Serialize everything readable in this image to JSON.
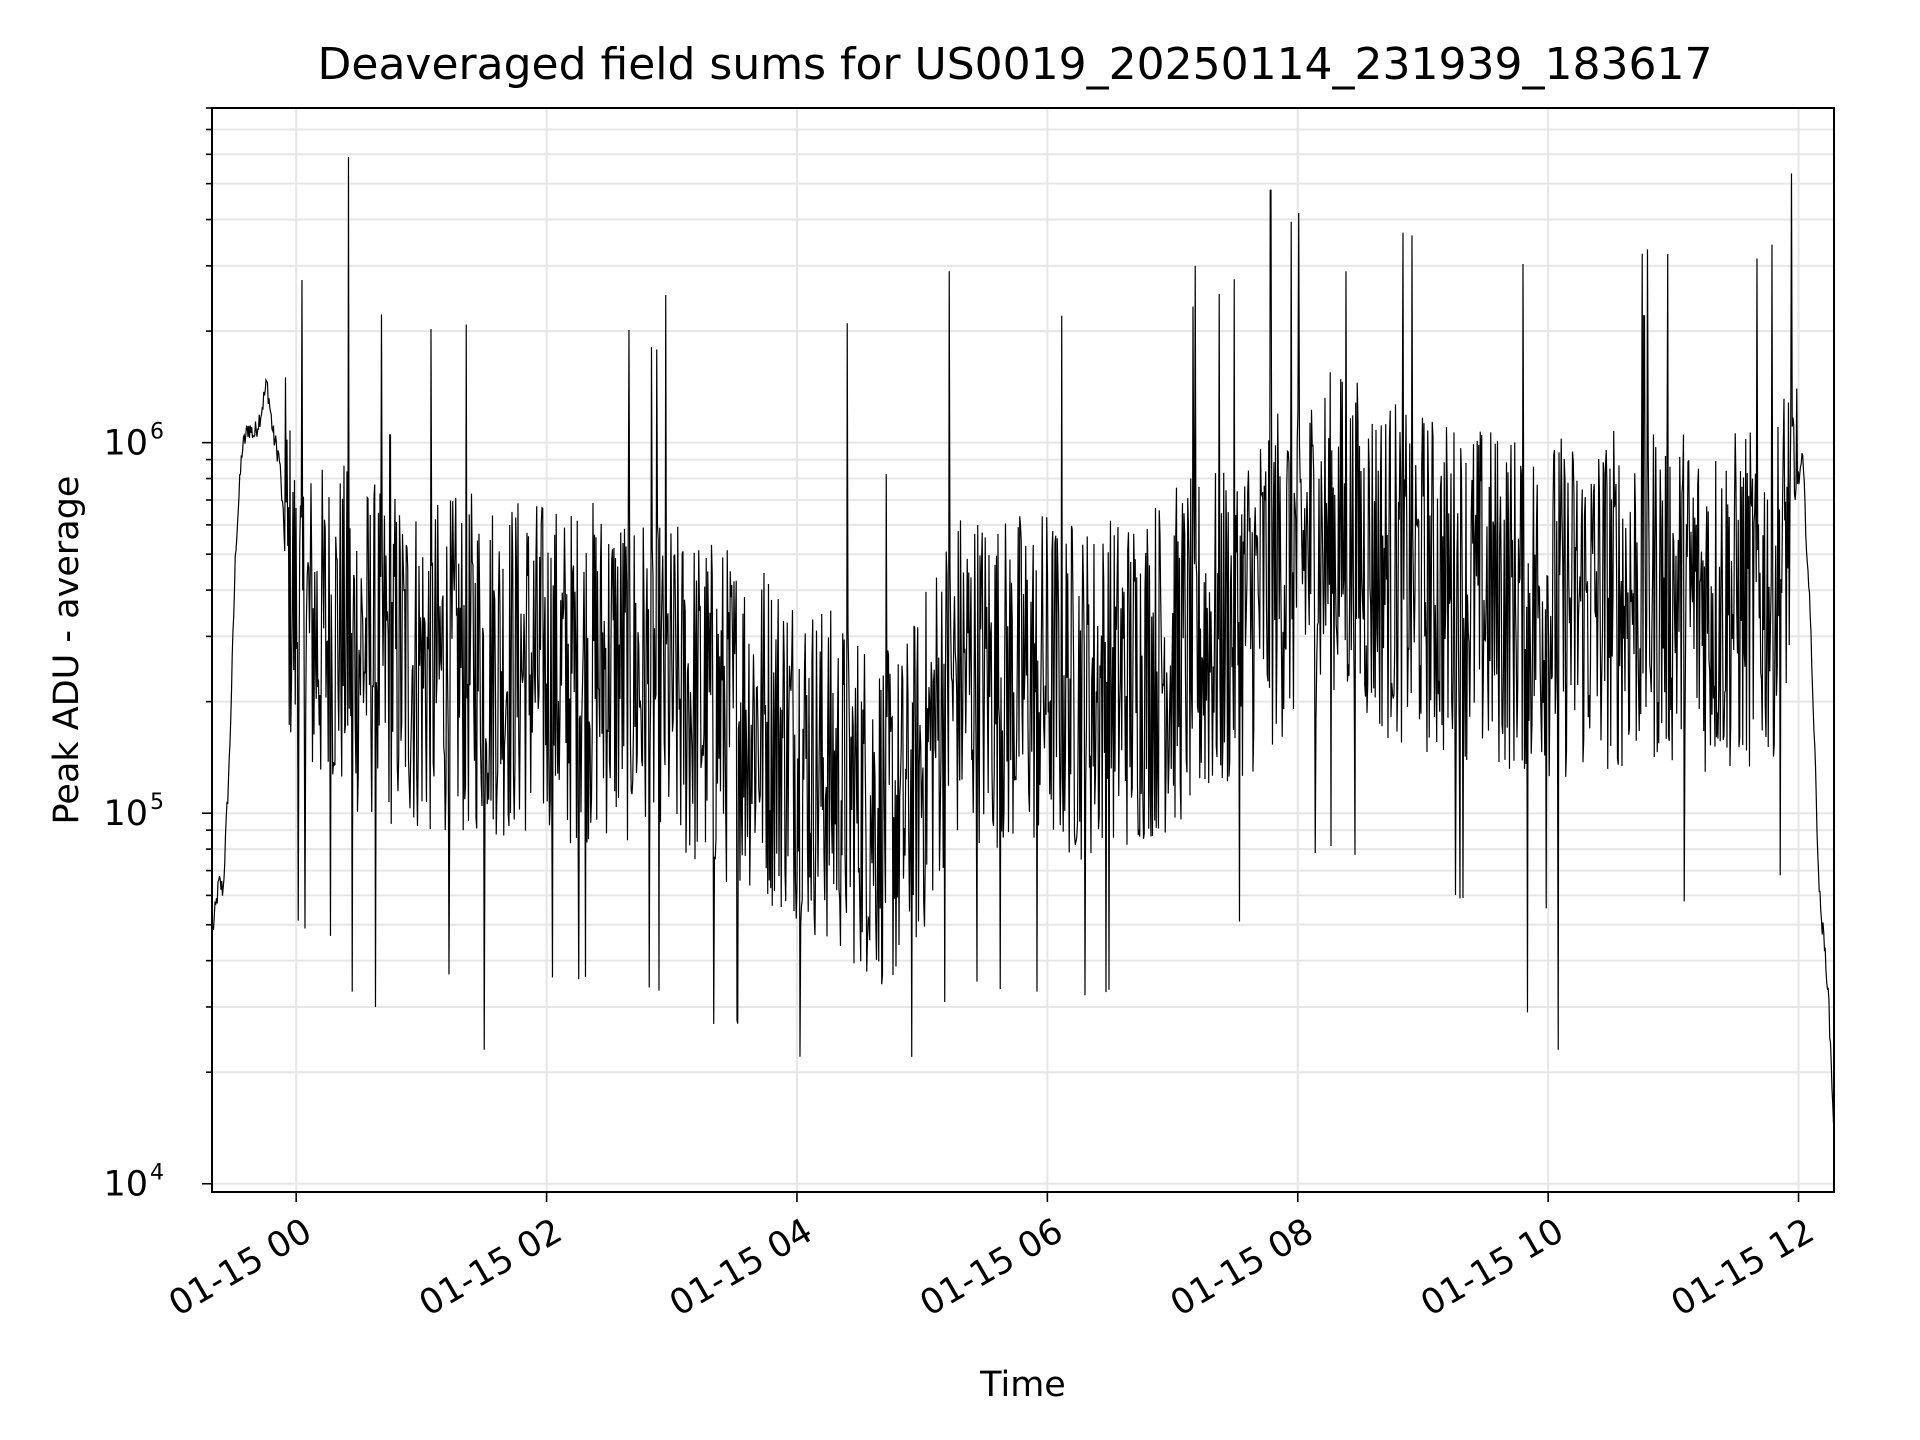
{
  "chart_data": {
    "type": "line",
    "title": "Deaveraged field sums for US0019_20250114_231939_183617",
    "xlabel": "Time",
    "ylabel": "Peak ADU - average",
    "yscale": "log",
    "ylim": [
      9500,
      8000000
    ],
    "xlim": [
      "2025-01-14 23:19:39",
      "2025-01-15 12:17:00"
    ],
    "grid": true,
    "line_color": "#000000",
    "x_ticks": [
      {
        "value": "2025-01-15 00:00",
        "label": "01-15 00"
      },
      {
        "value": "2025-01-15 02:00",
        "label": "01-15 02"
      },
      {
        "value": "2025-01-15 04:00",
        "label": "01-15 04"
      },
      {
        "value": "2025-01-15 06:00",
        "label": "01-15 06"
      },
      {
        "value": "2025-01-15 08:00",
        "label": "01-15 08"
      },
      {
        "value": "2025-01-15 10:00",
        "label": "01-15 10"
      },
      {
        "value": "2025-01-15 12:00",
        "label": "01-15 12"
      }
    ],
    "y_ticks": [
      {
        "value": 10000,
        "base": "10",
        "exp": "4"
      },
      {
        "value": 100000,
        "base": "10",
        "exp": "5"
      },
      {
        "value": 1000000,
        "base": "10",
        "exp": "6"
      }
    ],
    "series": [
      {
        "x": [
          "2025-01-14 23:20",
          "2025-01-14 23:23",
          "2025-01-14 23:25",
          "2025-01-14 23:28",
          "2025-01-14 23:31",
          "2025-01-14 23:34",
          "2025-01-14 23:37",
          "2025-01-14 23:40",
          "2025-01-14 23:43",
          "2025-01-14 23:46",
          "2025-01-14 23:49",
          "2025-01-14 23:52",
          "2025-01-14 23:55",
          "2025-01-15 00:00",
          "2025-01-15 00:10",
          "2025-01-15 00:20",
          "2025-01-15 00:30",
          "2025-01-15 00:40",
          "2025-01-15 00:50",
          "2025-01-15 01:00",
          "2025-01-15 01:10",
          "2025-01-15 01:20",
          "2025-01-15 01:30",
          "2025-01-15 01:40",
          "2025-01-15 01:50",
          "2025-01-15 02:00",
          "2025-01-15 02:10",
          "2025-01-15 02:20",
          "2025-01-15 02:30",
          "2025-01-15 02:40",
          "2025-01-15 02:50",
          "2025-01-15 03:00",
          "2025-01-15 03:10",
          "2025-01-15 03:20",
          "2025-01-15 03:30",
          "2025-01-15 03:40",
          "2025-01-15 03:50",
          "2025-01-15 04:00",
          "2025-01-15 04:10",
          "2025-01-15 04:20",
          "2025-01-15 04:30",
          "2025-01-15 04:40",
          "2025-01-15 04:50",
          "2025-01-15 05:00",
          "2025-01-15 05:10",
          "2025-01-15 05:20",
          "2025-01-15 05:30",
          "2025-01-15 05:40",
          "2025-01-15 05:50",
          "2025-01-15 06:00",
          "2025-01-15 06:10",
          "2025-01-15 06:20",
          "2025-01-15 06:30",
          "2025-01-15 06:40",
          "2025-01-15 06:50",
          "2025-01-15 07:00",
          "2025-01-15 07:10",
          "2025-01-15 07:20",
          "2025-01-15 07:30",
          "2025-01-15 07:40",
          "2025-01-15 07:50",
          "2025-01-15 08:00",
          "2025-01-15 08:10",
          "2025-01-15 08:20",
          "2025-01-15 08:30",
          "2025-01-15 08:40",
          "2025-01-15 08:50",
          "2025-01-15 09:00",
          "2025-01-15 09:10",
          "2025-01-15 09:20",
          "2025-01-15 09:30",
          "2025-01-15 09:40",
          "2025-01-15 09:50",
          "2025-01-15 10:00",
          "2025-01-15 10:10",
          "2025-01-15 10:20",
          "2025-01-15 10:30",
          "2025-01-15 10:40",
          "2025-01-15 10:50",
          "2025-01-15 11:00",
          "2025-01-15 11:10",
          "2025-01-15 11:20",
          "2025-01-15 11:30",
          "2025-01-15 11:40",
          "2025-01-15 11:50",
          "2025-01-15 11:58",
          "2025-01-15 12:02",
          "2025-01-15 12:06",
          "2025-01-15 12:10",
          "2025-01-15 12:14",
          "2025-01-15 12:17"
        ],
        "y": [
          48000,
          65000,
          62000,
          140000,
          520000,
          950000,
          1100000,
          1050000,
          1200000,
          1450000,
          1050000,
          900000,
          480000,
          340000,
          300000,
          310000,
          280000,
          270000,
          260000,
          250000,
          240000,
          250000,
          260000,
          250000,
          250000,
          240000,
          230000,
          240000,
          250000,
          240000,
          220000,
          210000,
          200000,
          190000,
          180000,
          180000,
          160000,
          150000,
          130000,
          120000,
          110000,
          100000,
          95000,
          130000,
          200000,
          240000,
          230000,
          220000,
          230000,
          230000,
          220000,
          210000,
          220000,
          230000,
          250000,
          260000,
          280000,
          300000,
          330000,
          380000,
          450000,
          500000,
          520000,
          550000,
          500000,
          470000,
          450000,
          420000,
          400000,
          390000,
          380000,
          380000,
          370000,
          360000,
          360000,
          370000,
          380000,
          390000,
          400000,
          390000,
          380000,
          370000,
          370000,
          380000,
          420000,
          700000,
          900000,
          300000,
          60000,
          35000,
          14000
        ]
      }
    ],
    "spikes": [
      {
        "x": "2025-01-15 00:25",
        "y": 5900000
      },
      {
        "x": "2025-01-14 23:55",
        "y": 1500000
      },
      {
        "x": "2025-01-15 00:45",
        "y": 1050000
      },
      {
        "x": "2025-01-15 02:57",
        "y": 2500000
      },
      {
        "x": "2025-01-15 04:24",
        "y": 2100000
      },
      {
        "x": "2025-01-15 05:13",
        "y": 2900000
      },
      {
        "x": "2025-01-15 06:07",
        "y": 2200000
      },
      {
        "x": "2025-01-15 07:11",
        "y": 3000000
      },
      {
        "x": "2025-01-15 07:47",
        "y": 4800000
      },
      {
        "x": "2025-01-15 08:23",
        "y": 2900000
      },
      {
        "x": "2025-01-15 10:46",
        "y": 2200000
      },
      {
        "x": "2025-01-15 11:59",
        "y": 1400000
      },
      {
        "x": "2025-01-15 04:55",
        "y": 22000
      },
      {
        "x": "2025-01-15 01:30",
        "y": 23000
      },
      {
        "x": "2025-01-15 09:50",
        "y": 29000
      },
      {
        "x": "2025-01-15 10:05",
        "y": 23000
      },
      {
        "x": "2025-01-15 03:20",
        "y": 27000
      },
      {
        "x": "2025-01-15 00:38",
        "y": 30000
      },
      {
        "x": "2025-01-15 00:27",
        "y": 33000
      },
      {
        "x": "2025-01-15 05:55",
        "y": 33000
      }
    ]
  }
}
